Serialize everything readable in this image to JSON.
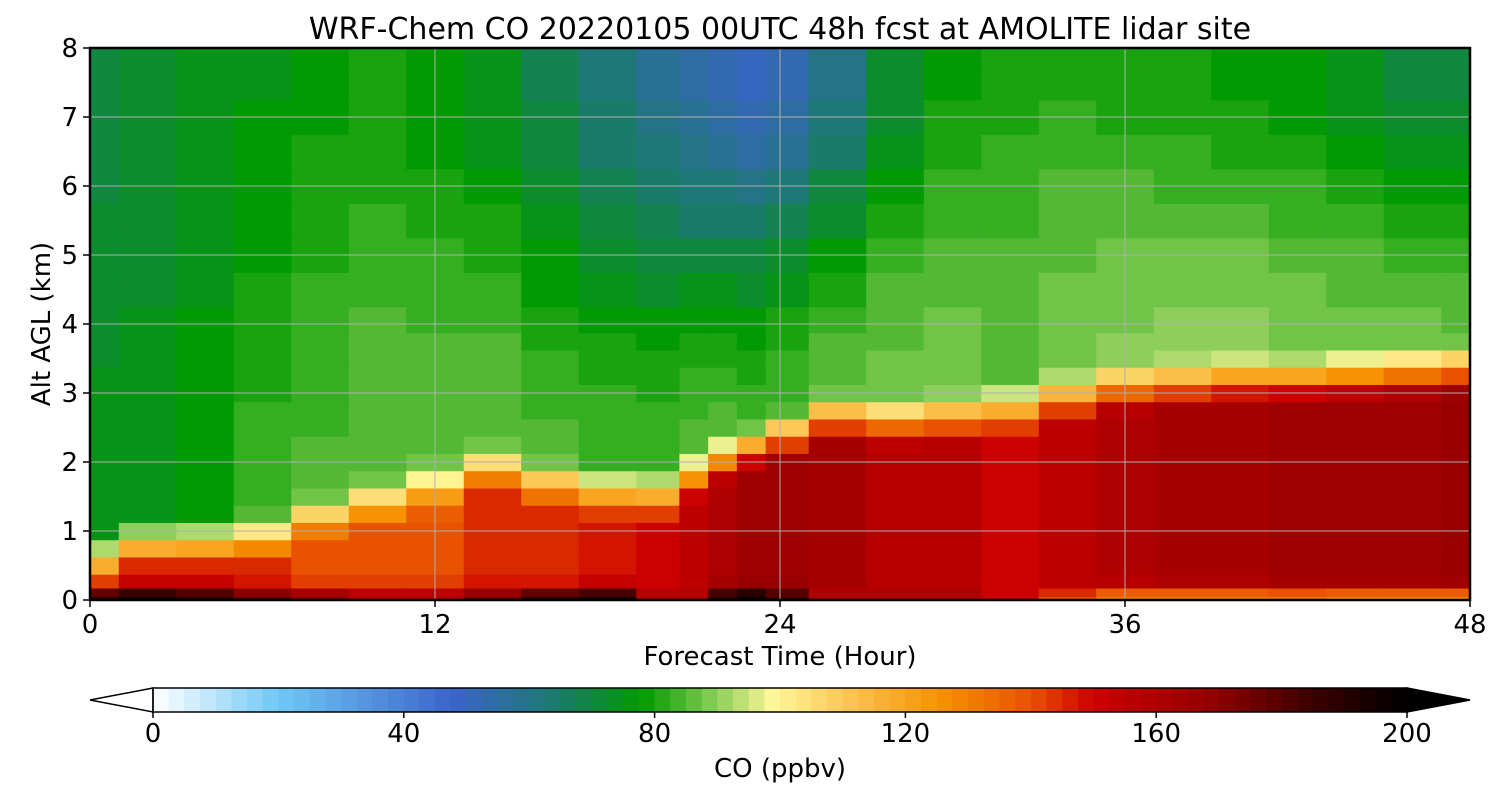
{
  "chart_data": {
    "type": "heatmap",
    "title": "WRF-Chem CO  20220105 00UTC 48h fcst at AMOLITE lidar site",
    "xlabel": "Forecast Time (Hour)",
    "ylabel": "Alt AGL (km)",
    "xlim": [
      0,
      48
    ],
    "ylim": [
      0,
      8
    ],
    "xticks": [
      0,
      12,
      24,
      36,
      48
    ],
    "yticks": [
      0,
      1,
      2,
      3,
      4,
      5,
      6,
      7,
      8
    ],
    "grid": true,
    "colorbar": {
      "label": "CO  (ppbv)",
      "range": [
        0,
        200
      ],
      "ticks": [
        0,
        40,
        80,
        120,
        160,
        200
      ],
      "extend": "both",
      "orientation": "horizontal",
      "stops": [
        {
          "value": 0,
          "color": "#ffffff"
        },
        {
          "value": 20,
          "color": "#6fc8f5"
        },
        {
          "value": 48,
          "color": "#3b63c9"
        },
        {
          "value": 64,
          "color": "#1c7a70"
        },
        {
          "value": 78,
          "color": "#009a00"
        },
        {
          "value": 92,
          "color": "#a6d86a"
        },
        {
          "value": 99,
          "color": "#fff79a"
        },
        {
          "value": 112,
          "color": "#fbc04c"
        },
        {
          "value": 126,
          "color": "#f59000"
        },
        {
          "value": 140,
          "color": "#e85200"
        },
        {
          "value": 150,
          "color": "#cc0000"
        },
        {
          "value": 168,
          "color": "#960000"
        },
        {
          "value": 185,
          "color": "#3a0000"
        },
        {
          "value": 200,
          "color": "#000000"
        }
      ]
    },
    "x_hours": [
      0,
      2,
      4,
      6,
      8,
      10,
      12,
      14,
      16,
      18,
      20,
      21,
      22,
      23,
      24,
      26,
      28,
      30,
      32,
      34,
      36,
      38,
      40,
      42,
      44,
      46,
      48
    ],
    "y_km": [
      0,
      0.1,
      0.25,
      0.5,
      0.75,
      1,
      1.25,
      1.5,
      1.75,
      2,
      2.25,
      2.5,
      2.75,
      3,
      3.25,
      3.5,
      3.75,
      4,
      4.5,
      5,
      5.5,
      6,
      6.5,
      7,
      7.5,
      8
    ],
    "layers": {
      "surface_max": [
        190,
        197,
        190,
        180,
        170,
        160,
        160,
        175,
        190,
        195,
        160,
        160,
        190,
        200,
        185,
        160,
        160,
        160,
        150,
        140,
        130,
        130,
        130,
        130,
        128,
        128,
        128
      ],
      "boundary_max": [
        140,
        150,
        150,
        145,
        140,
        140,
        140,
        145,
        145,
        148,
        150,
        155,
        160,
        165,
        165,
        162,
        158,
        158,
        150,
        155,
        160,
        162,
        162,
        165,
        165,
        165,
        168
      ],
      "boundary_top_km": [
        0.5,
        0.7,
        0.7,
        0.8,
        1.1,
        1.3,
        1.5,
        1.8,
        1.6,
        1.45,
        1.4,
        1.7,
        1.95,
        2.1,
        2.3,
        2.55,
        2.5,
        2.55,
        2.65,
        2.85,
        3.0,
        3.05,
        3.1,
        3.1,
        3.15,
        3.2,
        3.25
      ],
      "mid_value": [
        75,
        75,
        78,
        82,
        84,
        86,
        86,
        86,
        84,
        83,
        83,
        84,
        84,
        82,
        83,
        86,
        87,
        88,
        86,
        88,
        89,
        89,
        89,
        88,
        87,
        87,
        86
      ],
      "upper_value": [
        70,
        72,
        74,
        76,
        78,
        79,
        77,
        74,
        68,
        63,
        58,
        54,
        52,
        50,
        52,
        60,
        72,
        78,
        80,
        81,
        80,
        79,
        78,
        77,
        74,
        70,
        70
      ]
    }
  }
}
